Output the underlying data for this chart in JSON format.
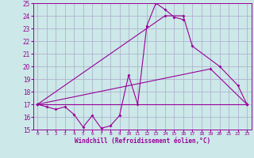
{
  "xlabel": "Windchill (Refroidissement éolien,°C)",
  "bg_color": "#cce8e8",
  "line_color": "#990099",
  "grid_color": "#aaaacc",
  "xlim": [
    -0.5,
    23.5
  ],
  "ylim": [
    15,
    25
  ],
  "yticks": [
    15,
    16,
    17,
    18,
    19,
    20,
    21,
    22,
    23,
    24,
    25
  ],
  "xticks": [
    0,
    1,
    2,
    3,
    4,
    5,
    6,
    7,
    8,
    9,
    10,
    11,
    12,
    13,
    14,
    15,
    16,
    17,
    18,
    19,
    20,
    21,
    22,
    23
  ],
  "series_data": {
    "line1": {
      "x": [
        0,
        1,
        2,
        3,
        4,
        5,
        6,
        7,
        8,
        9,
        10,
        11,
        12,
        13,
        14,
        15,
        16
      ],
      "y": [
        17.0,
        16.8,
        16.6,
        16.8,
        16.2,
        15.2,
        16.1,
        15.1,
        15.3,
        16.1,
        19.3,
        17.0,
        23.2,
        25.0,
        24.5,
        23.9,
        23.7
      ]
    },
    "line2": {
      "x": [
        0,
        14,
        16,
        17,
        20,
        22,
        23
      ],
      "y": [
        17.0,
        24.0,
        24.0,
        21.6,
        20.0,
        18.5,
        17.0
      ]
    },
    "line3": {
      "x": [
        0,
        19,
        23
      ],
      "y": [
        17.0,
        19.8,
        17.0
      ]
    },
    "line4": {
      "x": [
        0,
        23
      ],
      "y": [
        17.0,
        17.0
      ]
    }
  }
}
